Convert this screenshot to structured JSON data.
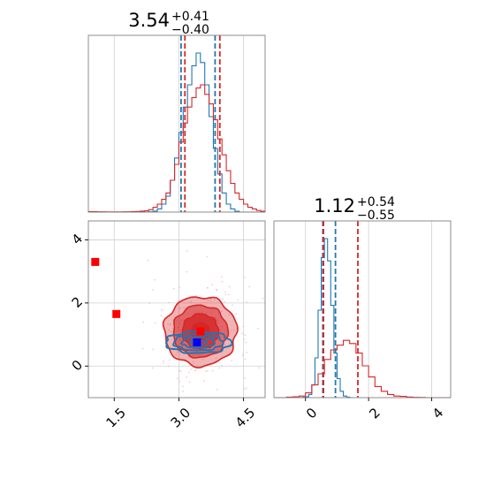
{
  "chart_data": [
    {
      "type": "histogram",
      "panel": "top-left",
      "title": {
        "value": "3.54",
        "upper": "+0.41",
        "lower": "−0.40"
      },
      "xlim": [
        0.9,
        5.0
      ],
      "grid": true,
      "show_x_ticks": false,
      "series": [
        {
          "color": "#1f77b4",
          "bin_edges": [
            0.9,
            1.0,
            1.1,
            1.2,
            1.3,
            1.4,
            1.5,
            1.6,
            1.7,
            1.8,
            1.9,
            2.0,
            2.1,
            2.2,
            2.3,
            2.4,
            2.5,
            2.6,
            2.7,
            2.8,
            2.9,
            3.0,
            3.1,
            3.2,
            3.3,
            3.4,
            3.5,
            3.6,
            3.7,
            3.8,
            3.9,
            4.0,
            4.1,
            4.2,
            4.3,
            4.4,
            4.5,
            4.6,
            4.7,
            4.8,
            4.9,
            5.0
          ],
          "counts": [
            0,
            0,
            0,
            0,
            0,
            0,
            0,
            0,
            0,
            0,
            0,
            0,
            0,
            0,
            0.002,
            0.006,
            0.02,
            0.05,
            0.1,
            0.2,
            0.34,
            0.5,
            0.66,
            0.8,
            0.92,
            1.0,
            0.94,
            0.8,
            0.6,
            0.4,
            0.24,
            0.12,
            0.05,
            0.02,
            0.005,
            0,
            0,
            0,
            0,
            0,
            0
          ],
          "quantiles": [
            3.05,
            3.84
          ]
        },
        {
          "color": "#d62728",
          "bin_edges": [
            0.9,
            1.0,
            1.1,
            1.2,
            1.3,
            1.4,
            1.5,
            1.6,
            1.7,
            1.8,
            1.9,
            2.0,
            2.1,
            2.2,
            2.3,
            2.4,
            2.5,
            2.6,
            2.7,
            2.8,
            2.9,
            3.0,
            3.1,
            3.2,
            3.3,
            3.4,
            3.5,
            3.6,
            3.7,
            3.8,
            3.9,
            4.0,
            4.1,
            4.2,
            4.3,
            4.4,
            4.5,
            4.6,
            4.7,
            4.8,
            4.9,
            5.0
          ],
          "counts": [
            0.003,
            0.003,
            0.002,
            0.002,
            0.001,
            0.001,
            0.001,
            0.001,
            0.002,
            0.002,
            0.003,
            0.004,
            0.006,
            0.008,
            0.015,
            0.03,
            0.05,
            0.08,
            0.12,
            0.2,
            0.3,
            0.44,
            0.56,
            0.66,
            0.72,
            0.78,
            0.8,
            0.74,
            0.68,
            0.58,
            0.46,
            0.36,
            0.26,
            0.18,
            0.12,
            0.08,
            0.05,
            0.03,
            0.02,
            0.01,
            0.005
          ],
          "quantiles": [
            3.14,
            3.95
          ]
        }
      ]
    },
    {
      "type": "scatter-contour",
      "panel": "bottom-left",
      "xlim": [
        0.9,
        5.0
      ],
      "ylim": [
        -1.0,
        4.6
      ],
      "xticks": [
        1.5,
        3.0,
        4.5
      ],
      "xtick_labels": [
        "1.5",
        "3.0",
        "4.5"
      ],
      "yticks": [
        0,
        2,
        4
      ],
      "ytick_labels": [
        "0",
        "2",
        "4"
      ],
      "grid": true,
      "red_contours": {
        "center": [
          3.5,
          1.1
        ],
        "sigma": [
          0.42,
          0.55
        ],
        "levels": [
          0.5,
          1.0,
          1.5,
          2.0
        ]
      },
      "blue_contours": {
        "center": [
          3.45,
          0.75
        ],
        "sigma": [
          0.38,
          0.17
        ],
        "levels": [
          0.5,
          1.0,
          1.5,
          2.0
        ]
      },
      "markers": [
        {
          "x": 1.06,
          "y": 3.3,
          "color": "#ff0000"
        },
        {
          "x": 1.55,
          "y": 1.65,
          "color": "#ff0000"
        },
        {
          "x": 3.5,
          "y": 1.1,
          "color": "#ff0000"
        },
        {
          "x": 3.42,
          "y": 0.75,
          "color": "#0000ff"
        }
      ]
    },
    {
      "type": "histogram",
      "panel": "bottom-right",
      "title": {
        "value": "1.12",
        "upper": "+0.54",
        "lower": "−0.55"
      },
      "xlim": [
        -1.0,
        4.6
      ],
      "xticks": [
        0,
        2,
        4
      ],
      "xtick_labels": [
        "0",
        "2",
        "4"
      ],
      "grid": true,
      "series": [
        {
          "color": "#1f77b4",
          "bin_edges": [
            -0.2,
            -0.1,
            0.0,
            0.1,
            0.2,
            0.3,
            0.4,
            0.5,
            0.6,
            0.7,
            0.8,
            0.9,
            1.0,
            1.1,
            1.2,
            1.3,
            1.4,
            1.5
          ],
          "counts": [
            0,
            0.002,
            0.005,
            0.02,
            0.08,
            0.25,
            0.55,
            0.88,
            1.0,
            0.86,
            0.58,
            0.28,
            0.12,
            0.04,
            0.01,
            0.003,
            0
          ],
          "quantiles": [
            0.55,
            0.95
          ]
        },
        {
          "color": "#d62728",
          "bin_edges": [
            -1.0,
            -0.8,
            -0.6,
            -0.4,
            -0.2,
            0.0,
            0.2,
            0.4,
            0.6,
            0.8,
            1.0,
            1.2,
            1.4,
            1.6,
            1.8,
            2.0,
            2.2,
            2.4,
            2.6,
            2.8,
            3.0,
            3.2,
            3.4,
            3.6,
            3.8,
            4.0,
            4.2,
            4.4,
            4.6
          ],
          "counts": [
            0,
            0,
            0.003,
            0.005,
            0.01,
            0.03,
            0.08,
            0.15,
            0.24,
            0.3,
            0.33,
            0.36,
            0.34,
            0.28,
            0.2,
            0.13,
            0.07,
            0.04,
            0.02,
            0.01,
            0.008,
            0.004,
            0.002,
            0.001,
            0,
            0,
            0,
            0
          ],
          "quantiles": [
            0.57,
            1.66
          ]
        }
      ]
    }
  ]
}
